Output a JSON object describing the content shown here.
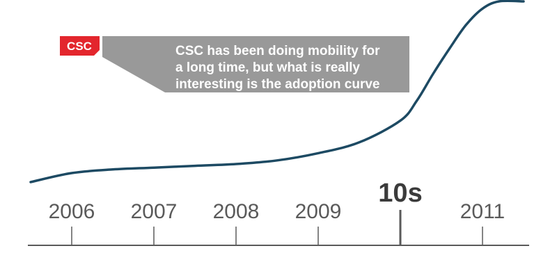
{
  "logo": {
    "text": "CSC",
    "color": "#e3262d"
  },
  "callout": {
    "lines": [
      "CSC has been doing mobility for",
      "a long time, but what is really",
      "interesting is the adoption curve"
    ],
    "color": "#999999"
  },
  "colors": {
    "curve": "#1d4a63",
    "axis": "#5a5a5a",
    "tick_label": "#5a5a5a",
    "highlight_label": "#3b3b3b"
  },
  "chart_data": {
    "type": "line",
    "title": "",
    "xlabel": "",
    "ylabel": "",
    "categories": [
      "2006",
      "2007",
      "2008",
      "2009",
      "10s",
      "2011"
    ],
    "highlight_category": "10s",
    "grid": false,
    "legend": "none",
    "x_range": [
      2005.5,
      2011.5
    ],
    "y_range": [
      0,
      100
    ],
    "series": [
      {
        "x": [
          2005.5,
          2006.0,
          2006.5,
          2007.0,
          2007.5,
          2008.0,
          2008.5,
          2009.0,
          2009.5,
          2010.0,
          2010.2,
          2010.4,
          2010.6,
          2010.8,
          2011.0,
          2011.2,
          2011.5
        ],
        "values": [
          0,
          5,
          7,
          8,
          9,
          10,
          12,
          16,
          22,
          34,
          45,
          60,
          74,
          87,
          96,
          100,
          100
        ]
      }
    ]
  }
}
